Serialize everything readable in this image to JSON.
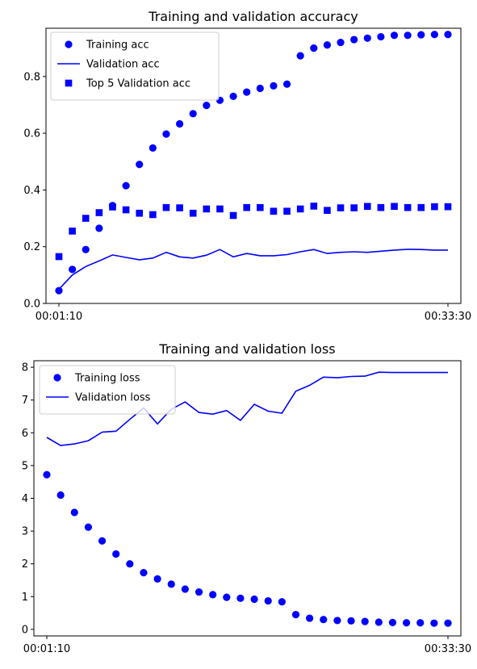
{
  "chart_data": [
    {
      "type": "scatter",
      "title": "Training and validation accuracy",
      "xlabel": "",
      "ylabel": "",
      "xlim": [
        0,
        29
      ],
      "ylim": [
        0.0,
        0.97
      ],
      "x_tick_labels": [
        {
          "x": 0,
          "label": "00:01:10"
        },
        {
          "x": 29,
          "label": "00:33:30"
        }
      ],
      "y_ticks": [
        0.0,
        0.2,
        0.4,
        0.6,
        0.8
      ],
      "grid": false,
      "legend_position": "upper-left",
      "x": [
        0,
        1,
        2,
        3,
        4,
        5,
        6,
        7,
        8,
        9,
        10,
        11,
        12,
        13,
        14,
        15,
        16,
        17,
        18,
        19,
        20,
        21,
        22,
        23,
        24,
        25,
        26,
        27,
        28,
        29
      ],
      "series": [
        {
          "name": "Training acc",
          "style": "dots",
          "color": "#0000ff",
          "values": [
            0.045,
            0.12,
            0.19,
            0.265,
            0.345,
            0.415,
            0.49,
            0.548,
            0.597,
            0.633,
            0.669,
            0.698,
            0.716,
            0.73,
            0.745,
            0.758,
            0.767,
            0.773,
            0.873,
            0.9,
            0.911,
            0.92,
            0.93,
            0.935,
            0.94,
            0.945,
            0.945,
            0.947,
            0.948,
            0.948
          ]
        },
        {
          "name": "Validation acc",
          "style": "line",
          "color": "#0000ff",
          "values": [
            0.05,
            0.1,
            0.13,
            0.15,
            0.171,
            0.162,
            0.154,
            0.16,
            0.18,
            0.164,
            0.16,
            0.17,
            0.19,
            0.164,
            0.176,
            0.168,
            0.168,
            0.172,
            0.182,
            0.19,
            0.176,
            0.18,
            0.182,
            0.18,
            0.184,
            0.188,
            0.191,
            0.19,
            0.188,
            0.188
          ]
        },
        {
          "name": "Top 5 Validation acc",
          "style": "squares",
          "color": "#0000ff",
          "values": [
            0.165,
            0.255,
            0.3,
            0.32,
            0.34,
            0.33,
            0.318,
            0.313,
            0.338,
            0.337,
            0.318,
            0.333,
            0.333,
            0.31,
            0.338,
            0.338,
            0.325,
            0.325,
            0.333,
            0.343,
            0.328,
            0.337,
            0.337,
            0.342,
            0.338,
            0.342,
            0.338,
            0.338,
            0.341,
            0.341
          ]
        }
      ]
    },
    {
      "type": "scatter",
      "title": "Training and validation loss",
      "xlabel": "",
      "ylabel": "",
      "xlim": [
        0,
        29
      ],
      "ylim": [
        -0.2,
        8.2
      ],
      "x_tick_labels": [
        {
          "x": 0,
          "label": "00:01:10"
        },
        {
          "x": 29,
          "label": "00:33:30"
        }
      ],
      "y_ticks": [
        0,
        1,
        2,
        3,
        4,
        5,
        6,
        7,
        8
      ],
      "grid": false,
      "legend_position": "upper-left",
      "x": [
        0,
        1,
        2,
        3,
        4,
        5,
        6,
        7,
        8,
        9,
        10,
        11,
        12,
        13,
        14,
        15,
        16,
        17,
        18,
        19,
        20,
        21,
        22,
        23,
        24,
        25,
        26,
        27,
        28,
        29
      ],
      "series": [
        {
          "name": "Training loss",
          "style": "dots",
          "color": "#0000ff",
          "values": [
            4.72,
            4.1,
            3.57,
            3.12,
            2.7,
            2.3,
            2.0,
            1.73,
            1.54,
            1.38,
            1.23,
            1.14,
            1.06,
            0.98,
            0.95,
            0.92,
            0.87,
            0.84,
            0.45,
            0.34,
            0.3,
            0.27,
            0.26,
            0.24,
            0.22,
            0.21,
            0.2,
            0.2,
            0.19,
            0.19
          ]
        },
        {
          "name": "Validation loss",
          "style": "line",
          "color": "#0000ff",
          "values": [
            5.86,
            5.61,
            5.66,
            5.76,
            6.02,
            6.05,
            6.41,
            6.76,
            6.27,
            6.72,
            6.94,
            6.62,
            6.57,
            6.68,
            6.38,
            6.87,
            6.66,
            6.6,
            7.27,
            7.45,
            7.7,
            7.68,
            7.72,
            7.73,
            7.85,
            7.84,
            7.84,
            7.84,
            7.84,
            7.84
          ]
        }
      ]
    }
  ]
}
